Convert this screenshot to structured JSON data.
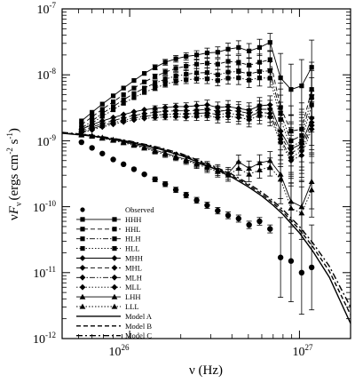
{
  "chart_data": {
    "type": "scatter",
    "title": "",
    "xscale": "log",
    "yscale": "log",
    "xlim": [
      4e+25,
      2e+27
    ],
    "ylim": [
      1e-12,
      1e-07
    ],
    "xlabel": {
      "main": "ν (Hz)"
    },
    "ylabel": {
      "nu": "ν",
      "F": "F",
      "sub": "ν",
      "open": "(ergs cm",
      "exp1": "-2",
      "s": " s",
      "exp2": "-1",
      "close": ")"
    },
    "x_ticks": [
      {
        "base": "10",
        "exp": "26",
        "value": 1e+26
      },
      {
        "base": "10",
        "exp": "27",
        "value": 1e+27
      }
    ],
    "y_ticks": [
      {
        "base": "10",
        "exp": "-12",
        "value": 1e-12
      },
      {
        "base": "10",
        "exp": "-11",
        "value": 1e-11
      },
      {
        "base": "10",
        "exp": "-10",
        "value": 1e-10
      },
      {
        "base": "10",
        "exp": "-9",
        "value": 1e-09
      },
      {
        "base": "10",
        "exp": "-8",
        "value": 1e-08
      },
      {
        "base": "10",
        "exp": "-7",
        "value": 1e-07
      }
    ],
    "legend_position": "bottom-left",
    "x": [
      5.2e+25,
      6e+25,
      6.9e+25,
      8e+25,
      9.2e+25,
      1.06e+26,
      1.22e+26,
      1.41e+26,
      1.62e+26,
      1.87e+26,
      2.15e+26,
      2.48e+26,
      2.86e+26,
      3.3e+26,
      3.8e+26,
      4.38e+26,
      5.05e+26,
      5.82e+26,
      6.71e+26,
      7.74e+26,
      8.92e+26,
      1.03e+27,
      1.18e+27
    ],
    "series": [
      {
        "name": "Observed",
        "marker": "circle",
        "line": "none",
        "x": [
          5.2e+25,
          6e+25,
          6.9e+25,
          8e+25,
          9.2e+25,
          1.06e+26,
          1.22e+26,
          1.41e+26,
          1.62e+26,
          1.87e+26,
          2.15e+26,
          2.48e+26,
          2.86e+26,
          3.3e+26,
          3.8e+26,
          4.38e+26,
          5.05e+26,
          5.82e+26,
          6.71e+26,
          7.74e+26,
          8.92e+26,
          1.03e+27,
          1.18e+27
        ],
        "values": [
          9.5e-10,
          7.8e-10,
          6.4e-10,
          5.2e-10,
          4.4e-10,
          3.7e-10,
          3.1e-10,
          2.6e-10,
          2.2e-10,
          1.8e-10,
          1.5e-10,
          1.25e-10,
          1.05e-10,
          8.7e-11,
          7.4e-11,
          6.6e-11,
          5.3e-11,
          6e-11,
          4.6e-11,
          1.7e-11,
          1.5e-11,
          1e-11,
          1.2e-11
        ]
      },
      {
        "name": "HHH",
        "marker": "square",
        "line": "solid",
        "values": [
          2e-09,
          2.7e-09,
          3.6e-09,
          4.8e-09,
          6.3e-09,
          8.2e-09,
          1.05e-08,
          1.3e-08,
          1.55e-08,
          1.75e-08,
          1.9e-08,
          2e-08,
          2.15e-08,
          2.2e-08,
          2.45e-08,
          2.6e-08,
          2.3e-08,
          2.6e-08,
          3.1e-08,
          9e-09,
          6e-09,
          6.8e-09,
          1.3e-08
        ]
      },
      {
        "name": "HHL",
        "marker": "square",
        "line": "dash",
        "values": [
          1.75e-09,
          2.3e-09,
          3e-09,
          3.9e-09,
          5e-09,
          6.3e-09,
          7.8e-09,
          9.4e-09,
          1.1e-08,
          1.25e-08,
          1.35e-08,
          1.45e-08,
          1.5e-08,
          1.45e-08,
          1.6e-08,
          1.55e-08,
          1.4e-08,
          1.55e-08,
          1.7e-08,
          3.2e-09,
          1.4e-09,
          1.5e-09,
          6e-09
        ]
      },
      {
        "name": "HLH",
        "marker": "square",
        "line": "dashdotdot",
        "values": [
          1.55e-09,
          2e-09,
          2.6e-09,
          3.3e-09,
          4.2e-09,
          5.2e-09,
          6.3e-09,
          7.5e-09,
          8.6e-09,
          9.6e-09,
          1.02e-08,
          1.07e-08,
          1.08e-08,
          1e-08,
          1.1e-08,
          1.12e-08,
          1.03e-08,
          1.12e-08,
          1.15e-08,
          2.6e-09,
          1e-09,
          1.2e-09,
          4.5e-09
        ]
      },
      {
        "name": "HLL",
        "marker": "square",
        "line": "dotted",
        "values": [
          1.45e-09,
          1.85e-09,
          2.35e-09,
          2.95e-09,
          3.7e-09,
          4.5e-09,
          5.4e-09,
          6.3e-09,
          7.2e-09,
          7.9e-09,
          8.4e-09,
          8.7e-09,
          8.7e-09,
          8.2e-09,
          8.9e-09,
          9e-09,
          8.3e-09,
          9e-09,
          8.9e-09,
          2.1e-09,
          8e-10,
          1e-09,
          3.5e-09
        ]
      },
      {
        "name": "MHH",
        "marker": "diamond",
        "line": "solid",
        "values": [
          1.5e-09,
          1.75e-09,
          2e-09,
          2.25e-09,
          2.5e-09,
          2.75e-09,
          2.95e-09,
          3.1e-09,
          3.2e-09,
          3.3e-09,
          3.3e-09,
          3.4e-09,
          3.5e-09,
          3.2e-09,
          3.3e-09,
          3.1e-09,
          2.9e-09,
          3.4e-09,
          3.5e-09,
          1.4e-09,
          7.5e-10,
          9e-10,
          2.2e-09
        ]
      },
      {
        "name": "MHL",
        "marker": "diamond",
        "line": "dash",
        "values": [
          1.42e-09,
          1.62e-09,
          1.82e-09,
          2.02e-09,
          2.22e-09,
          2.42e-09,
          2.58e-09,
          2.7e-09,
          2.8e-09,
          2.85e-09,
          2.85e-09,
          2.9e-09,
          3e-09,
          2.8e-09,
          2.9e-09,
          2.8e-09,
          2.6e-09,
          3e-09,
          3e-09,
          1.2e-09,
          6.5e-10,
          8e-10,
          1.9e-09
        ]
      },
      {
        "name": "MLH",
        "marker": "diamond",
        "line": "dashdotdot",
        "values": [
          1.36e-09,
          1.52e-09,
          1.7e-09,
          1.88e-09,
          2.05e-09,
          2.22e-09,
          2.35e-09,
          2.45e-09,
          2.5e-09,
          2.55e-09,
          2.55e-09,
          2.6e-09,
          2.65e-09,
          2.5e-09,
          2.6e-09,
          2.5e-09,
          2.35e-09,
          2.7e-09,
          2.6e-09,
          1.05e-09,
          5.5e-10,
          7e-10,
          1.7e-09
        ]
      },
      {
        "name": "MLL",
        "marker": "diamond",
        "line": "dotted",
        "values": [
          1.32e-09,
          1.46e-09,
          1.62e-09,
          1.78e-09,
          1.93e-09,
          2.07e-09,
          2.18e-09,
          2.25e-09,
          2.3e-09,
          2.32e-09,
          2.3e-09,
          2.35e-09,
          2.4e-09,
          2.25e-09,
          2.35e-09,
          2.25e-09,
          2.1e-09,
          2.4e-09,
          2.3e-09,
          9.5e-10,
          5e-10,
          6e-10,
          1.5e-09
        ]
      },
      {
        "name": "LHH",
        "marker": "triangle",
        "line": "solid",
        "values": [
          1.25e-09,
          1.2e-09,
          1.12e-09,
          1.04e-09,
          9.6e-10,
          8.8e-10,
          8e-10,
          7.2e-10,
          6.5e-10,
          5.8e-10,
          5.2e-10,
          4.6e-10,
          4.1e-10,
          3.6e-10,
          3.2e-10,
          4.8e-10,
          3.8e-10,
          4.6e-10,
          5e-10,
          3.1e-10,
          1.2e-10,
          1e-10,
          2.4e-10
        ]
      },
      {
        "name": "LLL",
        "marker": "triangle",
        "line": "dotted",
        "values": [
          1.22e-09,
          1.17e-09,
          1.09e-09,
          1.01e-09,
          9.3e-10,
          8.5e-10,
          7.7e-10,
          6.9e-10,
          6.2e-10,
          5.6e-10,
          5e-10,
          4.4e-10,
          3.9e-10,
          3.4e-10,
          3e-10,
          3.8e-10,
          3.1e-10,
          3.6e-10,
          4e-10,
          2.6e-10,
          9.5e-11,
          8e-11,
          1.8e-10
        ]
      },
      {
        "name": "Model A",
        "marker": "none",
        "line": "solid",
        "x": [
          4e+25,
          6e+25,
          1e+26,
          1.5e+26,
          2e+26,
          3e+26,
          4e+26,
          5e+26,
          6e+26,
          7e+26,
          8e+26,
          1e+27,
          1.2e+27,
          1.5e+27,
          2e+27
        ],
        "values": [
          1.3e-09,
          1.18e-09,
          9.5e-10,
          7.5e-10,
          6e-10,
          4e-10,
          2.8e-10,
          2e-10,
          1.45e-10,
          1.05e-10,
          7.6e-11,
          4e-11,
          2.1e-11,
          8.5e-12,
          1.7e-12
        ]
      },
      {
        "name": "Model B",
        "marker": "none",
        "line": "dash",
        "x": [
          4e+25,
          6e+25,
          1e+26,
          1.5e+26,
          2e+26,
          3e+26,
          4e+26,
          5e+26,
          6e+26,
          7e+26,
          8e+26,
          1e+27,
          1.2e+27,
          1.5e+27,
          2e+27
        ],
        "values": [
          1.32e-09,
          1.2e-09,
          9.7e-10,
          7.7e-10,
          6.2e-10,
          4.15e-10,
          2.95e-10,
          2.12e-10,
          1.55e-10,
          1.13e-10,
          8.3e-11,
          4.5e-11,
          2.45e-11,
          1.05e-11,
          2.3e-12
        ]
      },
      {
        "name": "Model C",
        "marker": "none",
        "line": "dashdot",
        "x": [
          4e+25,
          6e+25,
          1e+26,
          1.5e+26,
          2e+26,
          3e+26,
          4e+26,
          5e+26,
          6e+26,
          7e+26,
          8e+26,
          1e+27,
          1.2e+27,
          1.5e+27,
          2e+27
        ],
        "values": [
          1.34e-09,
          1.22e-09,
          9.9e-10,
          7.9e-10,
          6.4e-10,
          4.3e-10,
          3.1e-10,
          2.25e-10,
          1.66e-10,
          1.22e-10,
          9e-11,
          5e-11,
          2.8e-11,
          1.25e-11,
          3e-12
        ]
      }
    ]
  }
}
